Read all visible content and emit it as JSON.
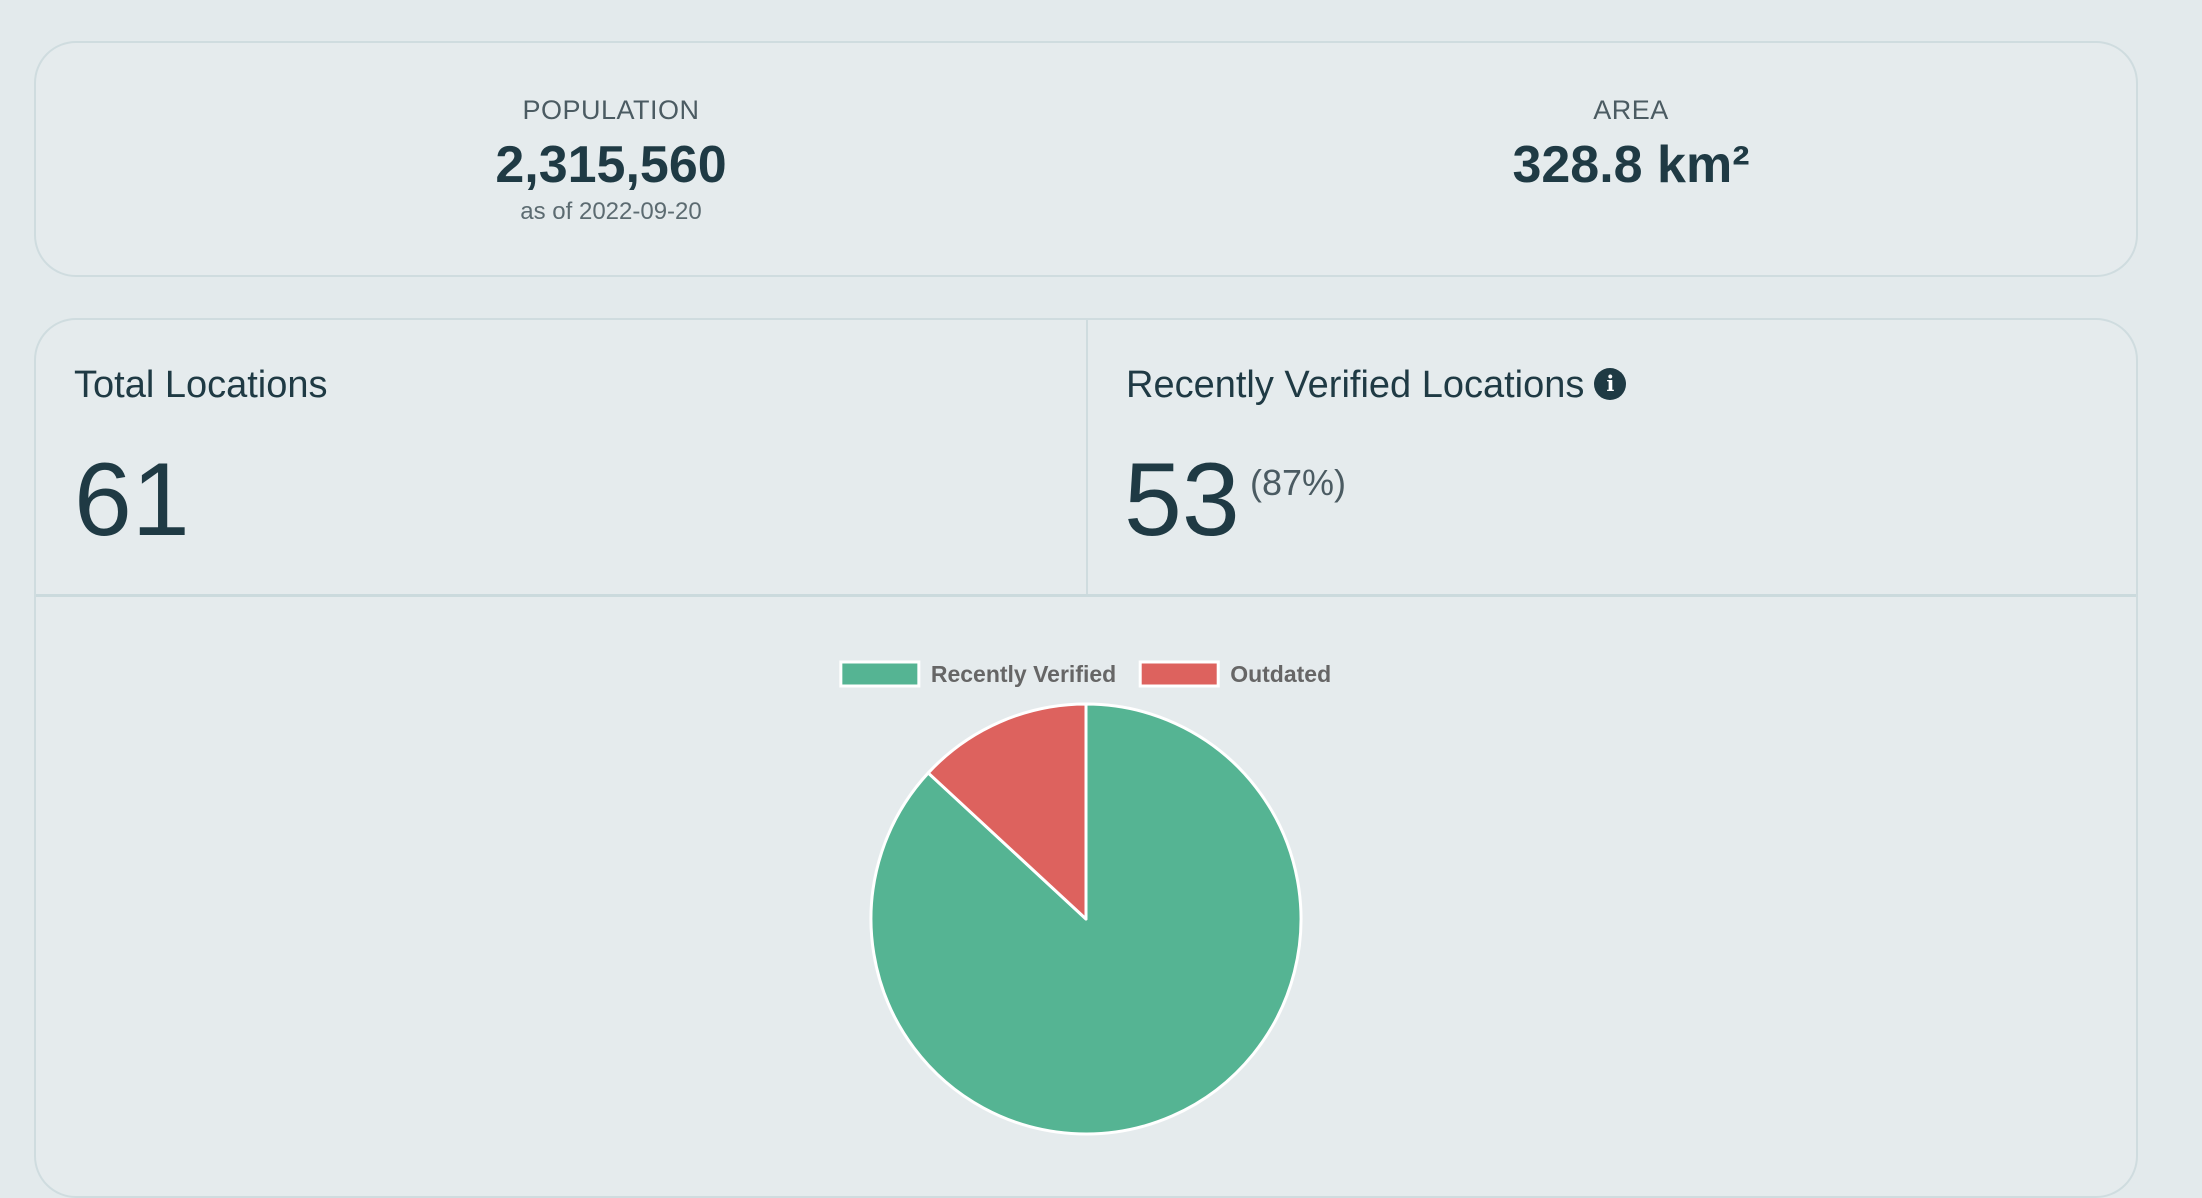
{
  "stats": {
    "population": {
      "label": "POPULATION",
      "value": "2,315,560",
      "as_of": "as of 2022-09-20"
    },
    "area": {
      "label": "AREA",
      "value": "328.8 km²"
    }
  },
  "locations": {
    "total": {
      "title": "Total Locations",
      "value": "61"
    },
    "verified": {
      "title": "Recently Verified Locations",
      "info_icon": "info-icon",
      "value": "53",
      "percent": "(87%)"
    }
  },
  "chart_data": {
    "type": "pie",
    "categories": [
      "Recently Verified",
      "Outdated"
    ],
    "values": [
      53,
      8
    ],
    "colors": [
      "#55b493",
      "#dd625e"
    ],
    "legend": "top",
    "title": ""
  }
}
